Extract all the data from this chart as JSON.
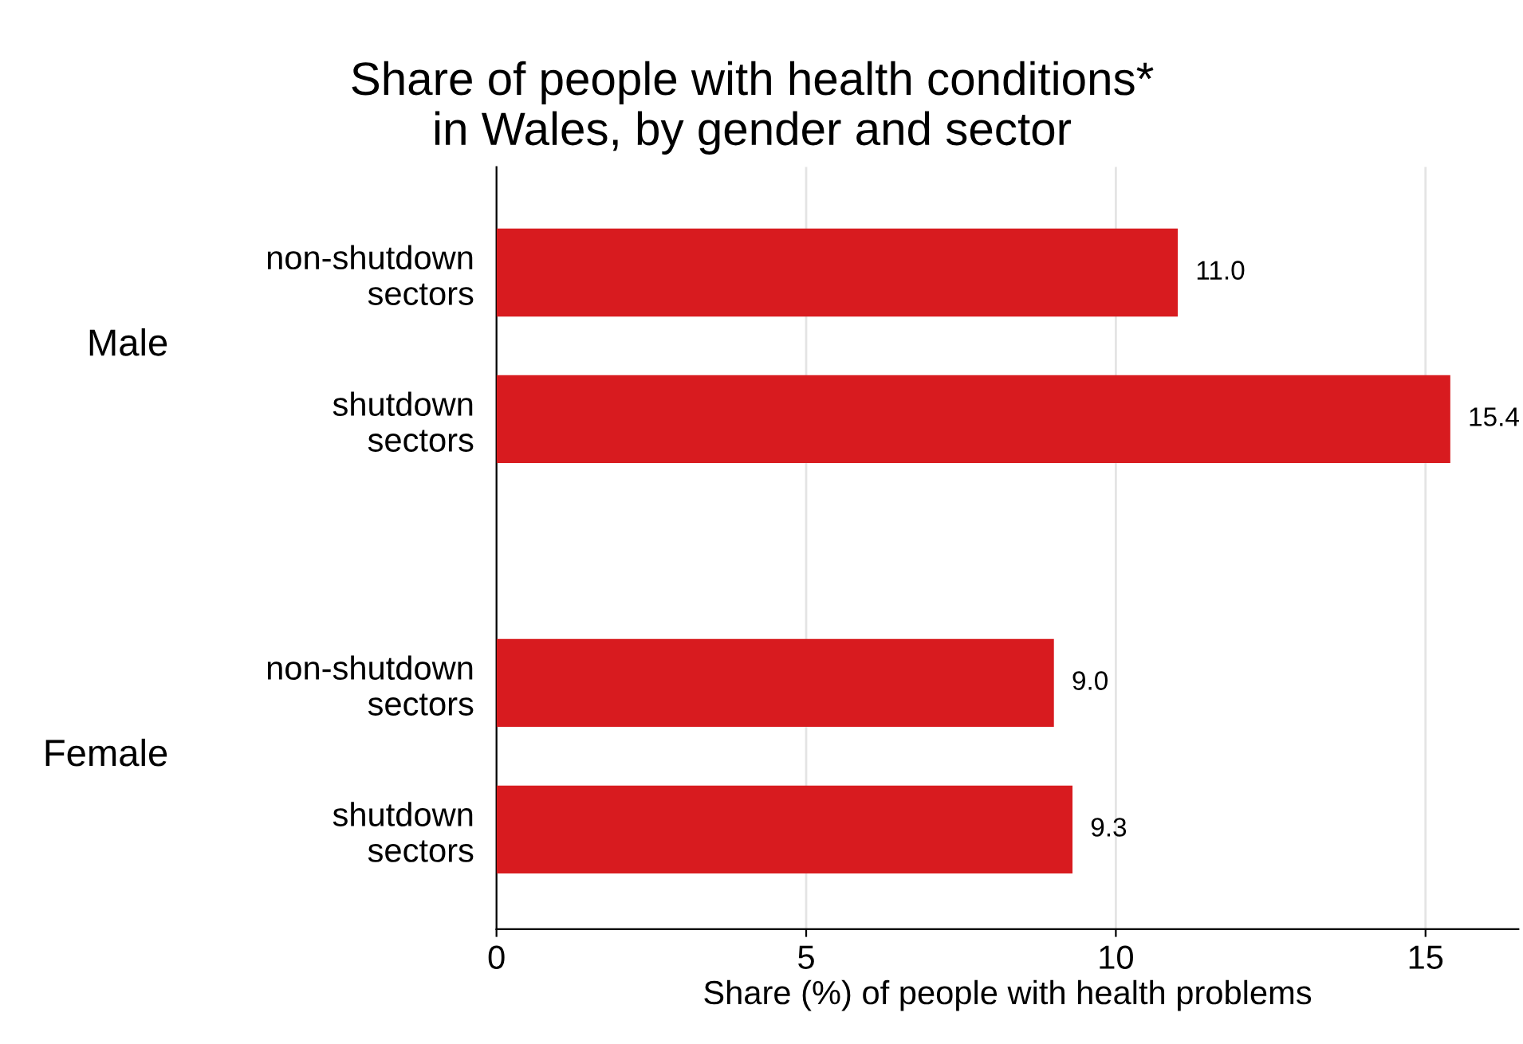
{
  "chart_data": {
    "type": "bar",
    "orientation": "horizontal",
    "title": "Share of people with health conditions*\nin Wales, by gender and sector",
    "categories": [
      "non-shutdown\nsectors",
      "shutdown\nsectors",
      "non-shutdown\nsectors",
      "shutdown\nsectors"
    ],
    "values": [
      11.0,
      15.4,
      9.0,
      9.3
    ],
    "color": "#d81b1f",
    "value_labels": [
      "11.0",
      "15.4",
      "9.0",
      "9.3"
    ],
    "xlabel": "Share (%) of people with health problems",
    "xlim": [
      0,
      16.5
    ],
    "xticks": [
      0,
      5,
      10,
      15
    ],
    "grid": "x",
    "annotations": [
      "Male",
      "Female"
    ]
  }
}
